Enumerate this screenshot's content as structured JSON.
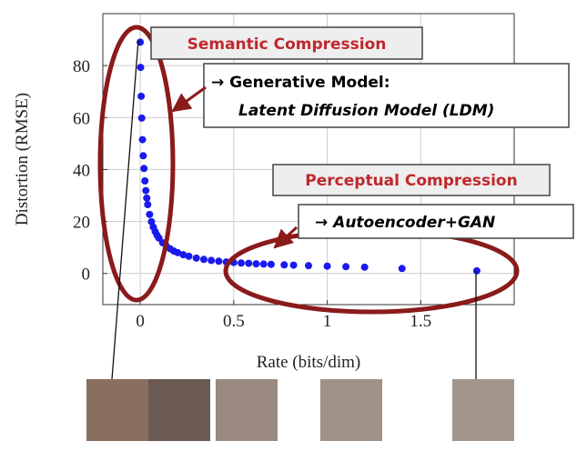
{
  "chart_data": {
    "type": "scatter",
    "x_label": "Rate (bits/dim)",
    "y_label": "Distortion (RMSE)",
    "x": [
      0,
      0.002,
      0.005,
      0.008,
      0.012,
      0.016,
      0.02,
      0.025,
      0.03,
      0.035,
      0.04,
      0.05,
      0.06,
      0.07,
      0.08,
      0.09,
      0.1,
      0.12,
      0.14,
      0.16,
      0.18,
      0.2,
      0.23,
      0.26,
      0.3,
      0.34,
      0.38,
      0.42,
      0.46,
      0.5,
      0.54,
      0.58,
      0.62,
      0.66,
      0.7,
      0.77,
      0.82,
      0.9,
      1.0,
      1.1,
      1.2,
      1.4,
      1.8
    ],
    "values": [
      89,
      79.3,
      68.2,
      59.8,
      51.5,
      45.3,
      40.4,
      35.6,
      31.9,
      29.0,
      26.5,
      22.7,
      19.9,
      17.8,
      16.1,
      14.7,
      13.6,
      11.8,
      10.5,
      9.5,
      8.6,
      8.0,
      7.2,
      6.6,
      5.9,
      5.4,
      5.0,
      4.7,
      4.4,
      4.2,
      4.0,
      3.9,
      3.7,
      3.6,
      3.5,
      3.3,
      3.2,
      3.0,
      2.8,
      2.6,
      2.4,
      1.9,
      1.0
    ],
    "color": "#1a1aee",
    "xlim": [
      -0.2,
      2.0
    ],
    "ylim": [
      -12,
      100
    ],
    "xticks": [
      0,
      0.5,
      1,
      1.5
    ],
    "yticks": [
      0,
      20,
      40,
      60,
      80
    ],
    "grid": true,
    "annotations": [
      "Semantic Compression",
      "→ Generative Model:",
      "Latent Diffusion Model (LDM)",
      "Perceptual Compression",
      "→ Autoencoder+GAN"
    ]
  }
}
